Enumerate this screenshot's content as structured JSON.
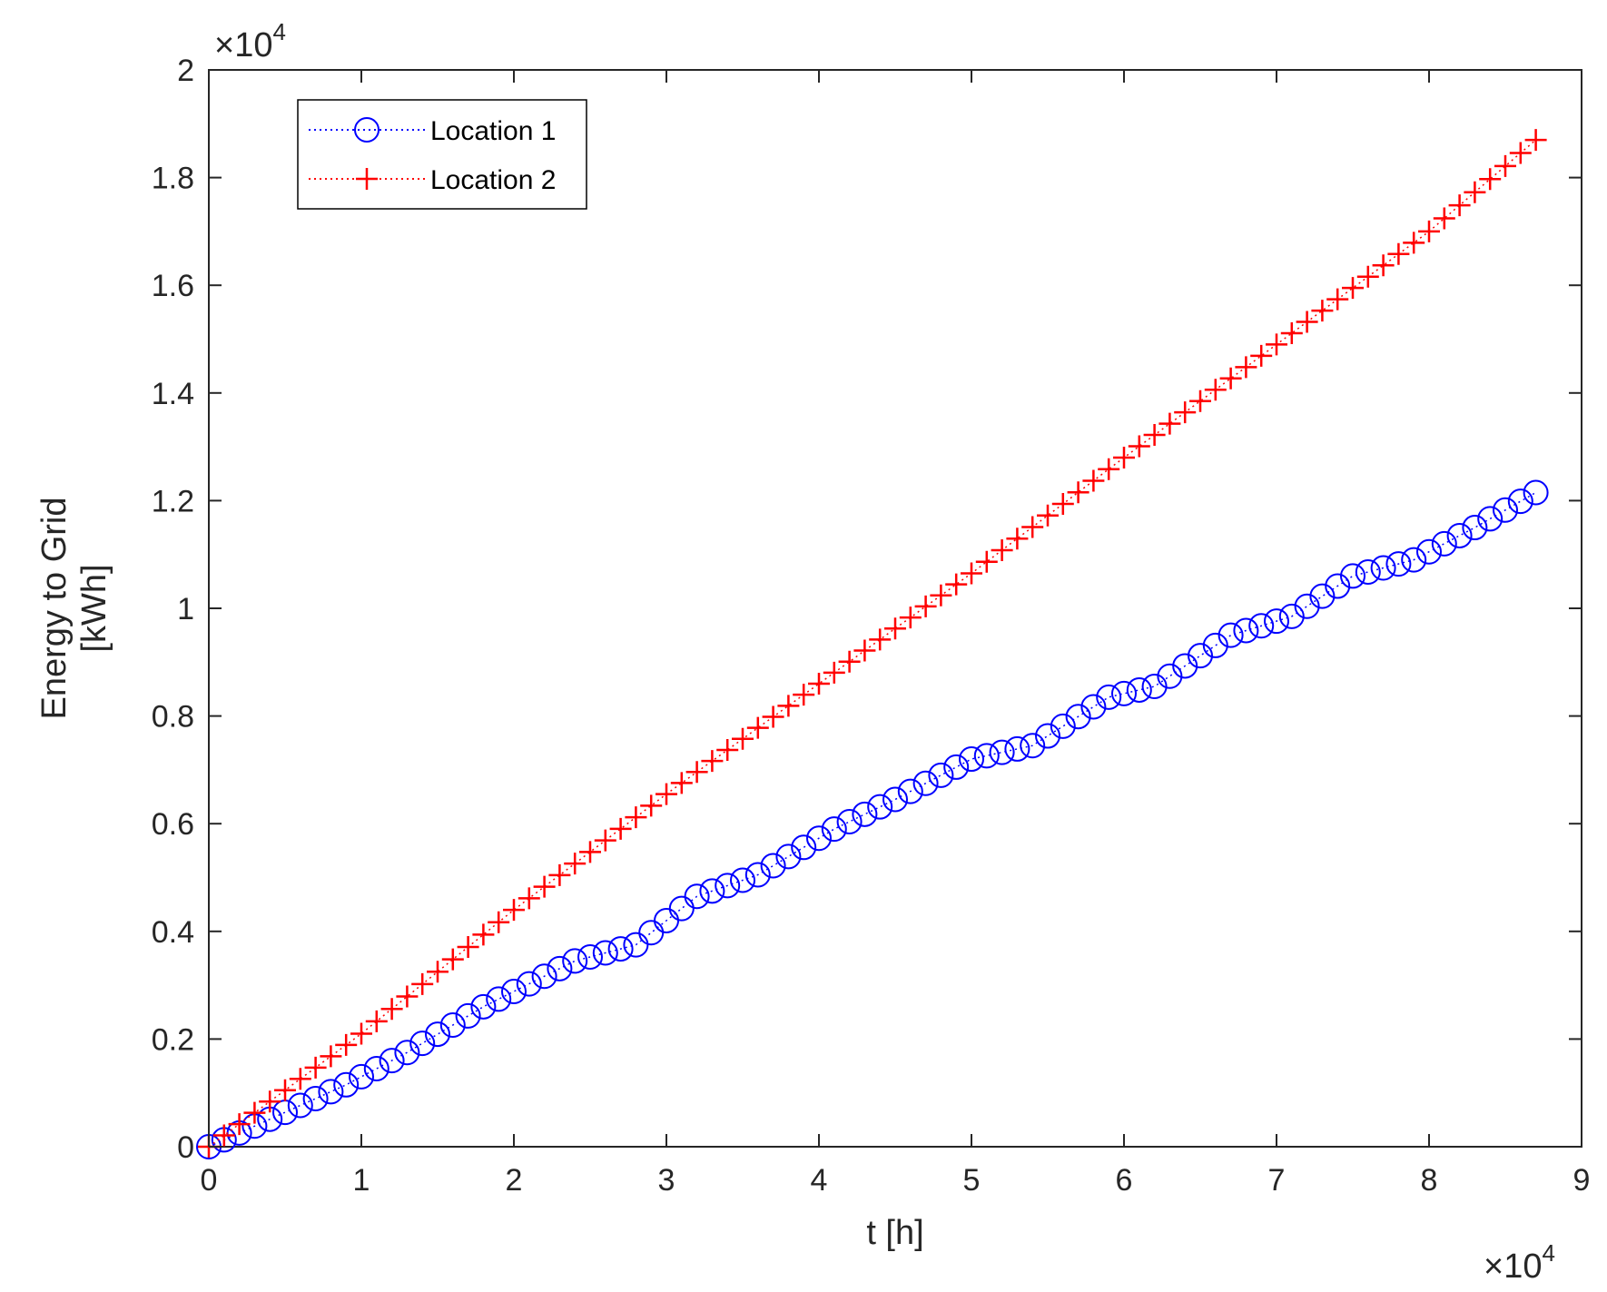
{
  "chart_data": {
    "type": "line",
    "xlabel": "t [h]",
    "ylabel_lines": [
      "Energy to Grid",
      "[kWh]"
    ],
    "x_multiplier": {
      "base": "×10",
      "exponent": "4"
    },
    "y_multiplier": {
      "base": "×10",
      "exponent": "4"
    },
    "xlim": [
      0,
      9
    ],
    "ylim": [
      0,
      2
    ],
    "x_ticks": [
      0,
      1,
      2,
      3,
      4,
      5,
      6,
      7,
      8,
      9
    ],
    "x_tick_labels": [
      "0",
      "1",
      "2",
      "3",
      "4",
      "5",
      "6",
      "7",
      "8",
      "9"
    ],
    "y_ticks": [
      0,
      0.2,
      0.4,
      0.6,
      0.8,
      1.0,
      1.2,
      1.4,
      1.6,
      1.8,
      2.0
    ],
    "y_tick_labels": [
      "0",
      "0.2",
      "0.4",
      "0.6",
      "0.8",
      "1",
      "1.2",
      "1.4",
      "1.6",
      "1.8",
      "2"
    ],
    "grid": false,
    "legend_position": "top-left",
    "series": [
      {
        "name": "Location 1",
        "color": "#0000FF",
        "marker": "circle",
        "line_style": "dotted",
        "x": [
          0,
          8.7
        ],
        "y": [
          0,
          1.215
        ],
        "anchor_x": [
          0,
          0.9,
          1.3,
          1.8,
          2.4,
          2.8,
          3.2,
          3.6,
          4.1,
          4.5,
          5.0,
          5.4,
          5.9,
          6.2,
          6.7,
          7.1,
          7.5,
          7.9,
          8.3,
          8.7
        ],
        "anchor_y": [
          0,
          0.115,
          0.175,
          0.26,
          0.345,
          0.375,
          0.465,
          0.505,
          0.59,
          0.645,
          0.72,
          0.745,
          0.835,
          0.855,
          0.95,
          0.985,
          1.06,
          1.09,
          1.15,
          1.215
        ]
      },
      {
        "name": "Location 2",
        "color": "#FF0000",
        "marker": "plus",
        "line_style": "dotted",
        "x": [
          0,
          8.7
        ],
        "y": [
          0,
          1.87
        ],
        "anchor_x": [
          0,
          1.0,
          2.0,
          3.0,
          4.0,
          5.0,
          6.0,
          7.0,
          8.0,
          8.7
        ],
        "anchor_y": [
          0,
          0.21,
          0.44,
          0.655,
          0.86,
          1.065,
          1.28,
          1.49,
          1.7,
          1.87
        ]
      }
    ],
    "marker_spacing_x": 0.1
  }
}
